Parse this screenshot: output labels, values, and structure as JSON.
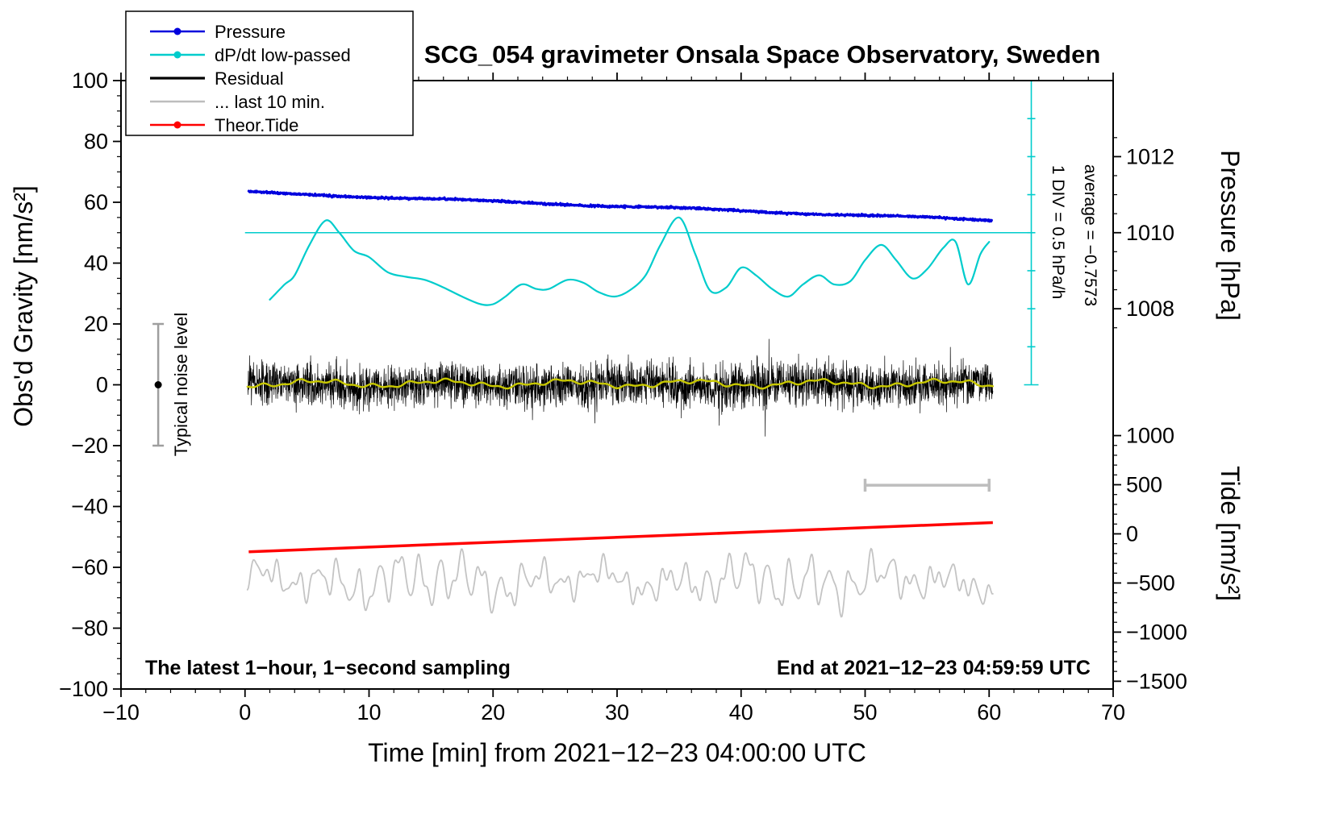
{
  "title": "SCG_054 gravimeter Onsala Space Observatory, Sweden",
  "annotations": {
    "sampling": "The latest 1−hour, 1−second sampling",
    "end_time": "End at 2021−12−23 04:59:59 UTC",
    "div_scale": "1 DIV = 0.5 hPa/h",
    "average": "average = −0.7573",
    "noise_label": "Typical noise level"
  },
  "legend": {
    "items": [
      {
        "label": "Pressure",
        "color": "#0000dd",
        "dot": true,
        "width": 2.6
      },
      {
        "label": "dP/dt low-passed",
        "color": "#00cccc",
        "dot": true,
        "width": 2.6
      },
      {
        "label": "Residual",
        "color": "#000000",
        "dot": false,
        "width": 3.2
      },
      {
        "label": "... last 10 min.",
        "color": "#bdbdbd",
        "dot": false,
        "width": 2.6
      },
      {
        "label": "Theor.Tide",
        "color": "#ff0000",
        "dot": true,
        "width": 2.6
      }
    ]
  },
  "chart_data": {
    "type": "line",
    "title": "SCG_054 gravimeter Onsala Space Observatory, Sweden",
    "xlabel": "Time [min] from 2021−12−23 04:00:00 UTC",
    "ylabel": "Obs'd Gravity [nm/s²]",
    "y2label_pressure": "Pressure [hPa]",
    "y2label_tide": "Tide [nm/s²]",
    "x_axis": {
      "min": -10,
      "max": 70,
      "major_ticks": [
        -10,
        0,
        10,
        20,
        30,
        40,
        50,
        60,
        70
      ],
      "minor_step": 2
    },
    "y_axis": {
      "min": -100,
      "max": 100,
      "major_ticks": [
        -100,
        -80,
        -60,
        -40,
        -20,
        0,
        20,
        40,
        60,
        80,
        100
      ],
      "minor_step": 5
    },
    "pressure_axis": {
      "labels": [
        1012,
        1010,
        1008
      ],
      "hpa_at_gravity50": 1010,
      "gravity_per_hpa": 12.5,
      "minor_step_hpa": 0.5,
      "tick_range_hpa": [
        1007.5,
        1012.5
      ]
    },
    "tide_axis": {
      "labels": [
        1000,
        500,
        0,
        -500,
        -1000,
        -1500
      ],
      "gravity_at_tide0": -49,
      "gravity_per_unit": 0.0323,
      "minor_step": 100
    },
    "series": {
      "pressure": {
        "name": "Pressure",
        "color": "#0000dd",
        "width": 3.2,
        "x_start": 0.3,
        "x_end": 60.2,
        "y_start": 63.3,
        "y_end": 54.1,
        "noise_sd": 0.16,
        "wiggle_amp": 0.25,
        "points": 1500,
        "seed": 11
      },
      "dpdt": {
        "name": "dP/dt low-passed",
        "color": "#00cccc",
        "width": 2.2,
        "x": [
          2,
          3.2,
          4,
          5.2,
          6.5,
          7.6,
          8.8,
          10,
          11.5,
          13,
          14.5,
          16,
          17.5,
          19,
          20,
          21,
          22.3,
          23.5,
          24.5,
          26,
          27.3,
          28.5,
          29.8,
          31,
          32.3,
          33.5,
          35,
          36.3,
          37.5,
          38.8,
          40,
          41.2,
          42.5,
          43.8,
          45,
          46.3,
          47.5,
          48.8,
          50,
          51.3,
          52.5,
          53.8,
          55,
          56.3,
          57.3,
          58.3,
          59.3,
          60
        ],
        "y": [
          28,
          33,
          36,
          46,
          54,
          50,
          44,
          42,
          37,
          35.5,
          34.5,
          32,
          29,
          26.5,
          26.5,
          29,
          33,
          31.5,
          31.5,
          34.5,
          33.5,
          30.5,
          29,
          31,
          36,
          46,
          55,
          43,
          31,
          32,
          38.5,
          36,
          31.5,
          29,
          33,
          36,
          33,
          34,
          41,
          46,
          41,
          35,
          38,
          45,
          47,
          33,
          43,
          47
        ]
      },
      "residual": {
        "name": "Residual",
        "color": "#000000",
        "width": 0.7,
        "x_start": 0.2,
        "x_end": 60.3,
        "mean": 0,
        "sd": 3.4,
        "spike_prob": 0.012,
        "spike_scale": 1.8,
        "clamp": 19,
        "points": 3600,
        "seed": 7
      },
      "residual_lowpass": {
        "name": "Residual low-passed",
        "color": "#c8c800",
        "width": 2.4,
        "x_start": 0.2,
        "x_end": 60.3,
        "offset": 0.4,
        "amp1": 0.9,
        "amp2": 0.5,
        "points": 400,
        "seed": 5
      },
      "last10": {
        "name": "... last 10 min.",
        "color": "#c4c4c4",
        "width": 1.8,
        "x_start": 0.2,
        "x_end": 60.3,
        "center": -64.5,
        "points": 900,
        "seed": 3
      },
      "tide": {
        "name": "Theor.Tide",
        "color": "#ff0000",
        "width": 3.5,
        "x_start": 0.3,
        "x_end": 60.3,
        "y_start": -54.9,
        "y_end": -45.3
      },
      "reference": {
        "color": "#00cccc",
        "width": 1.6,
        "h_line_y": 50,
        "h_line_x": [
          0,
          63.4
        ],
        "v_line_x": 63.4,
        "v_line_y": [
          0,
          100
        ],
        "div_gravity": 12.5
      },
      "noise_marker": {
        "x": -7,
        "dot_y": 0,
        "bar_y": [
          -20,
          20
        ],
        "bar_color": "#9e9e9e",
        "dot_color": "#000000"
      },
      "scale_bar": {
        "x": [
          50,
          60
        ],
        "y": -33,
        "color": "#bdbdbd",
        "width": 3.5
      }
    }
  }
}
